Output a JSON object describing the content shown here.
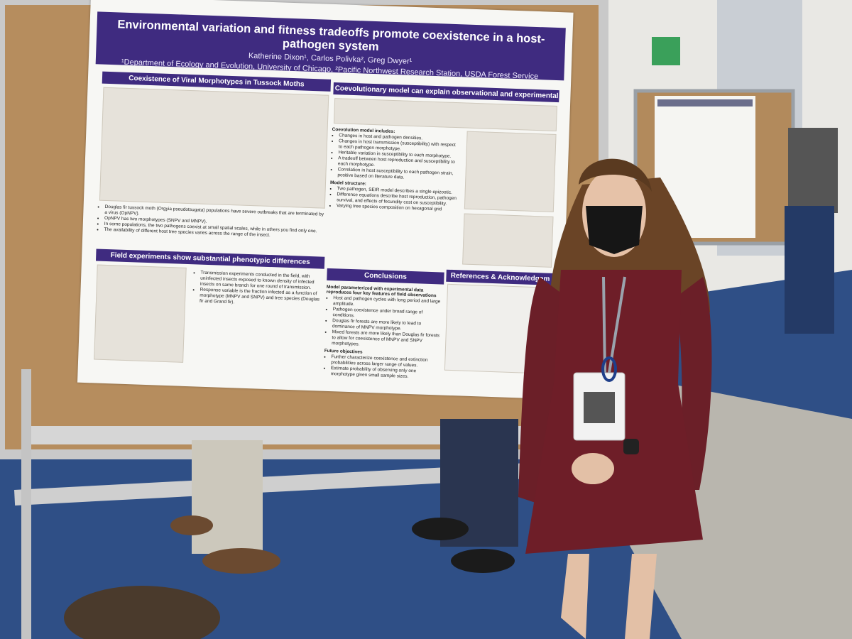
{
  "poster": {
    "title": "Environmental variation and fitness tradeoffs promote coexistence in a host-pathogen system",
    "authors": "Katherine Dixon¹, Carlos Polivka², Greg Dwyer¹",
    "affiliation": "¹Department of Ecology and Evolution, University of Chicago, ²Pacific Northwest Research Station, USDA Forest Service",
    "sections": [
      {
        "heading": "Coexistence of Viral Morphotypes in Tussock Moths",
        "blocks": [
          {
            "bullets": [
              "Douglas fir tussock moth (Orgyia pseudotsugata) populations have severe outbreaks that are terminated by a virus (OpNPV).",
              "OpNPV has two morphotypes (SNPV and MNPV).",
              "In some populations, the two pathogens coexist at small spatial scales, while in others you find only one.",
              "The availability of different host tree species varies across the range of the insect."
            ]
          }
        ]
      },
      {
        "heading": "Coevolutionary model can explain observational and experimental data",
        "blocks": [
          {
            "label": "Coevolution model includes:",
            "bullets": [
              "Changes in host and pathogen densities.",
              "Changes in host transmission (susceptibility) with respect to each pathogen morphotype.",
              "Heritable variation in susceptibility to each morphotype.",
              "A tradeoff between host reproduction and susceptibility to each morphotype.",
              "Correlation in host susceptibility to each pathogen strain, positive based on literature data."
            ]
          },
          {
            "label": "Model structure:",
            "bullets": [
              "Two pathogen, SEIR model describes a single epizootic.",
              "Difference equations describe host reproduction, pathogen survival, and effects of fecundity cost on susceptibility.",
              "Varying tree species composition on hexagonal grid"
            ]
          }
        ]
      },
      {
        "heading": "Field experiments show substantial phenotypic differences",
        "blocks": [
          {
            "bullets": [
              "Transmission experiments conducted in the field, with uninfected insects exposed to known density of infected insects on same branch for one round of transmission.",
              "Response variable is the fraction infected as a function of morphotype (MNPV and SNPV) and tree species (Douglas fir and Grand fir)."
            ]
          }
        ]
      },
      {
        "heading": "Conclusions",
        "blocks": [
          {
            "label": "Model parameterized with experimental data reproduces four key features of field observations",
            "bullets": [
              "Host and pathogen cycles with long period and large amplitude.",
              "Pathogen coexistence under broad range of conditions.",
              "Douglas fir forests are more likely to lead to dominance of MNPV morphotype.",
              "Mixed forests are more likely than Douglas fir forests to allow for coexistence of MNPV and SNPV morphotypes."
            ]
          },
          {
            "label": "Future objectives",
            "bullets": [
              "Further characterize coexistence and extinction probabilities across larger range of values.",
              "Estimate probability of observing only one morphotype given small sample sizes."
            ]
          }
        ]
      },
      {
        "heading": "References & Acknowledgem",
        "blocks": []
      }
    ]
  }
}
